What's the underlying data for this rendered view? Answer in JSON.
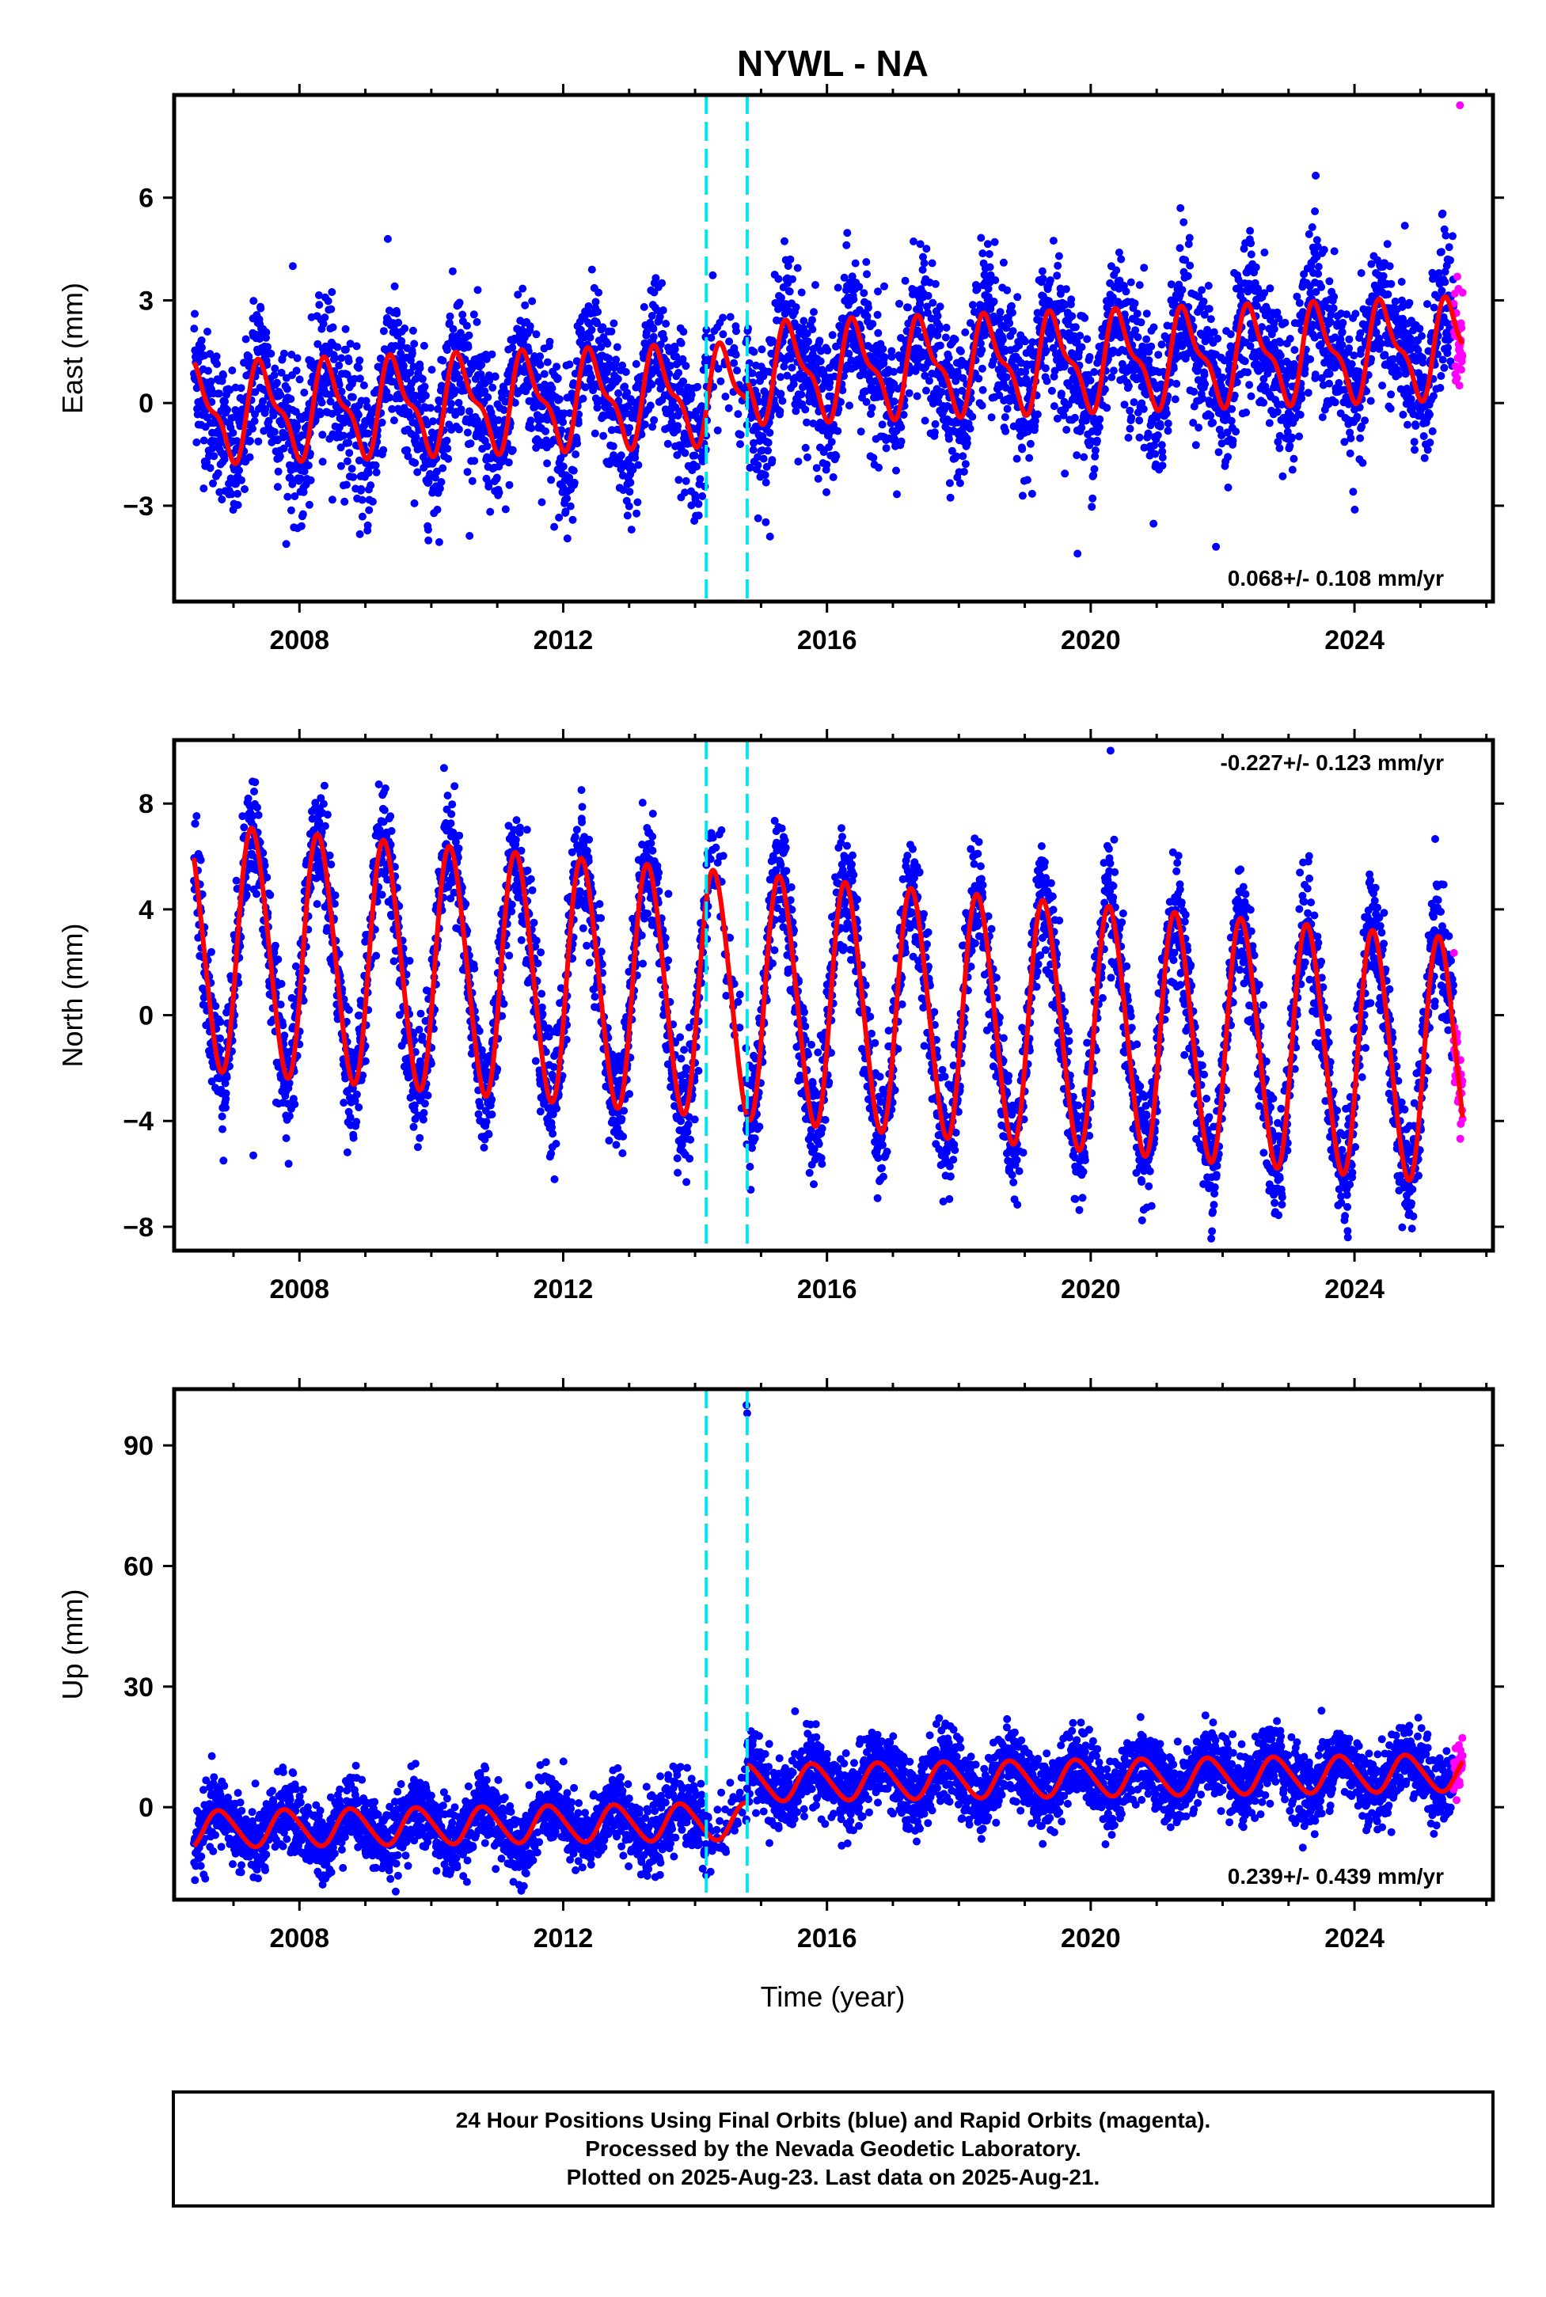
{
  "chart_data": {
    "type": "scatter",
    "title": "NYWL - NA",
    "xlabel": "Time (year)",
    "xlim": [
      2006.1,
      2026.1
    ],
    "x_ticks": [
      2008,
      2012,
      2016,
      2020,
      2024
    ],
    "x_tick_labels": [
      "2008",
      "2012",
      "2016",
      "2020",
      "2024"
    ],
    "data_start": 2006.4,
    "last_data": 2025.64,
    "rapid_start": 2025.5,
    "offset_markers_years": [
      2014.17,
      2014.79
    ],
    "colors": {
      "final_orbits": "#0000ff",
      "rapid_orbits": "#ff00ff",
      "model_fit": "#ff0000",
      "offset_lines": "#00e5ee"
    },
    "panels": [
      {
        "name": "East",
        "ylabel": "East (mm)",
        "ylim": [
          -5.8,
          9.0
        ],
        "y_ticks": [
          -3,
          0,
          3,
          6
        ],
        "y_tick_labels": [
          "−3",
          "0",
          "3",
          "6"
        ],
        "rate_text": "0.068+/- 0.108 mm/yr",
        "rate_position": "bottom-right",
        "model": {
          "base": -0.3,
          "trend_mm_per_yr": 0.068,
          "annual_amp": 1.25,
          "semiannual_amp": 0.5,
          "phase": 0.2,
          "step_at_second_marker": 0.6,
          "noise_sd": 1.05
        },
        "outliers": [
          {
            "x": 2007.9,
            "y": 4.0
          },
          {
            "x": 2021.9,
            "y": -4.2
          },
          {
            "x": 2019.8,
            "y": -4.4
          },
          {
            "x": 2023.4,
            "y": 5.6
          },
          {
            "x": 2025.6,
            "y": 8.7
          }
        ]
      },
      {
        "name": "North",
        "ylabel": "North (mm)",
        "ylim": [
          -8.9,
          10.4
        ],
        "y_ticks": [
          -8,
          -4,
          0,
          4,
          8
        ],
        "y_tick_labels": [
          "−8",
          "−4",
          "0",
          "4",
          "8"
        ],
        "rate_text": "-0.227+/- 0.123 mm/yr",
        "rate_position": "top-right",
        "model": {
          "base": 2.6,
          "trend_mm_per_yr": -0.227,
          "annual_amp": 4.6,
          "semiannual_amp": 0.4,
          "phase": 0.05,
          "step_at_second_marker": 0.0,
          "noise_sd": 1.1
        },
        "outliers": [
          {
            "x": 2007.3,
            "y": -5.3
          },
          {
            "x": 2020.3,
            "y": 10.0
          },
          {
            "x": 2023.9,
            "y": -8.4
          }
        ]
      },
      {
        "name": "Up",
        "ylabel": "Up (mm)",
        "ylim": [
          -23,
          104
        ],
        "y_ticks": [
          0,
          30,
          60,
          90
        ],
        "y_tick_labels": [
          "0",
          "30",
          "60",
          "90"
        ],
        "rate_text": "0.239+/- 0.439 mm/yr",
        "rate_position": "bottom-right",
        "model": {
          "base": -5.5,
          "trend_mm_per_yr": 0.239,
          "annual_amp": 4.5,
          "semiannual_amp": 0.5,
          "phase": 0.55,
          "step_at_second_marker": 9.5,
          "noise_sd": 4.4
        },
        "outliers": [
          {
            "x": 2014.78,
            "y": 100
          },
          {
            "x": 2014.79,
            "y": 98
          },
          {
            "x": 2023.5,
            "y": 24
          }
        ]
      }
    ]
  },
  "footer": {
    "line1": "24 Hour Positions Using Final Orbits (blue) and Rapid Orbits (magenta).",
    "line2": "Processed by the Nevada Geodetic Laboratory.",
    "line3": "Plotted on 2025-Aug-23. Last data on 2025-Aug-21."
  }
}
